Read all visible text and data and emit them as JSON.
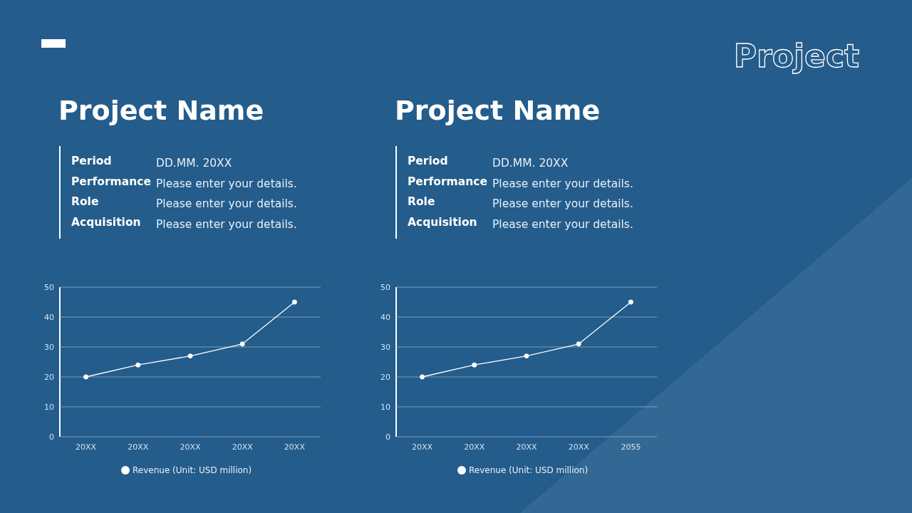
{
  "chart_data": [
    {
      "type": "line",
      "title": "Project Name",
      "categories": [
        "20XX",
        "20XX",
        "20XX",
        "20XX",
        "20XX"
      ],
      "series": [
        {
          "name": "Revenue (Unit: USD million)",
          "color": "#ffffff",
          "values": [
            20,
            24,
            27,
            31,
            45
          ]
        }
      ],
      "ylim": [
        0,
        50
      ],
      "yticks": [
        0,
        10,
        20,
        30,
        40,
        50
      ],
      "grid": "y",
      "legend": "bottom",
      "marker": "circle",
      "annotations": [
        "Period",
        "DD.MM. 20XX",
        "Performance",
        "Please enter your details.",
        "Role",
        "Please enter your details.",
        "Acquisition",
        "Please enter your details.",
        "Project"
      ]
    },
    {
      "type": "line",
      "title": "Project Name",
      "categories": [
        "20XX",
        "20XX",
        "20XX",
        "20XX",
        "2055"
      ],
      "series": [
        {
          "name": "Revenue (Unit: USD million)",
          "color": "#ffffff",
          "values": [
            20,
            24,
            27,
            31,
            45
          ]
        }
      ],
      "ylim": [
        0,
        50
      ],
      "yticks": [
        0,
        10,
        20,
        30,
        40,
        50
      ],
      "grid": "y",
      "legend": "bottom",
      "marker": "circle",
      "annotations": [
        "Period",
        "DD.MM. 20XX",
        "Performance",
        "Please enter your details.",
        "Role",
        "Please enter your details.",
        "Acquisition",
        "Please enter your details."
      ]
    }
  ]
}
